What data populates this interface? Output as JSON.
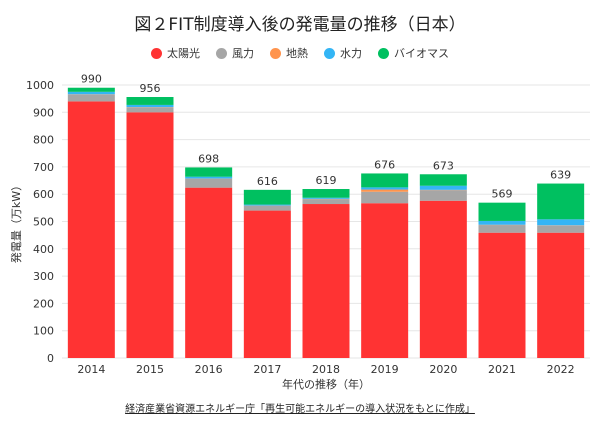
{
  "chart_data": {
    "type": "bar",
    "stacked": true,
    "title": "図２FIT制度導入後の発電量の推移（日本）",
    "xlabel": "年代の推移（年）",
    "ylabel": "発電量（万kW）",
    "ylim": [
      0,
      1000
    ],
    "yticks": [
      0,
      100,
      200,
      300,
      400,
      500,
      600,
      700,
      800,
      900,
      1000
    ],
    "grid": true,
    "legend_position": "top",
    "categories": [
      "2014",
      "2015",
      "2016",
      "2017",
      "2018",
      "2019",
      "2020",
      "2021",
      "2022"
    ],
    "series": [
      {
        "name": "太陽光",
        "color": "#ff3333",
        "values": [
          940,
          900,
          624,
          540,
          564,
          567,
          576,
          459,
          459
        ]
      },
      {
        "name": "風力",
        "color": "#a6a6a6",
        "values": [
          25,
          18,
          32,
          17,
          18,
          42,
          39,
          28,
          26
        ]
      },
      {
        "name": "地熱",
        "color": "#ff944d",
        "values": [
          1,
          1,
          1,
          1,
          1,
          8,
          1,
          1,
          1
        ]
      },
      {
        "name": "水力",
        "color": "#33b5f5",
        "values": [
          9,
          8,
          7,
          4,
          4,
          8,
          15,
          14,
          22
        ]
      },
      {
        "name": "バイオマス",
        "color": "#00c060",
        "values": [
          15,
          29,
          34,
          54,
          32,
          51,
          42,
          67,
          131
        ]
      }
    ],
    "totals": [
      990,
      956,
      698,
      616,
      619,
      676,
      673,
      569,
      639
    ],
    "source": "経済産業省資源エネルギー庁「再生可能エネルギーの導入状況をもとに作成」"
  }
}
